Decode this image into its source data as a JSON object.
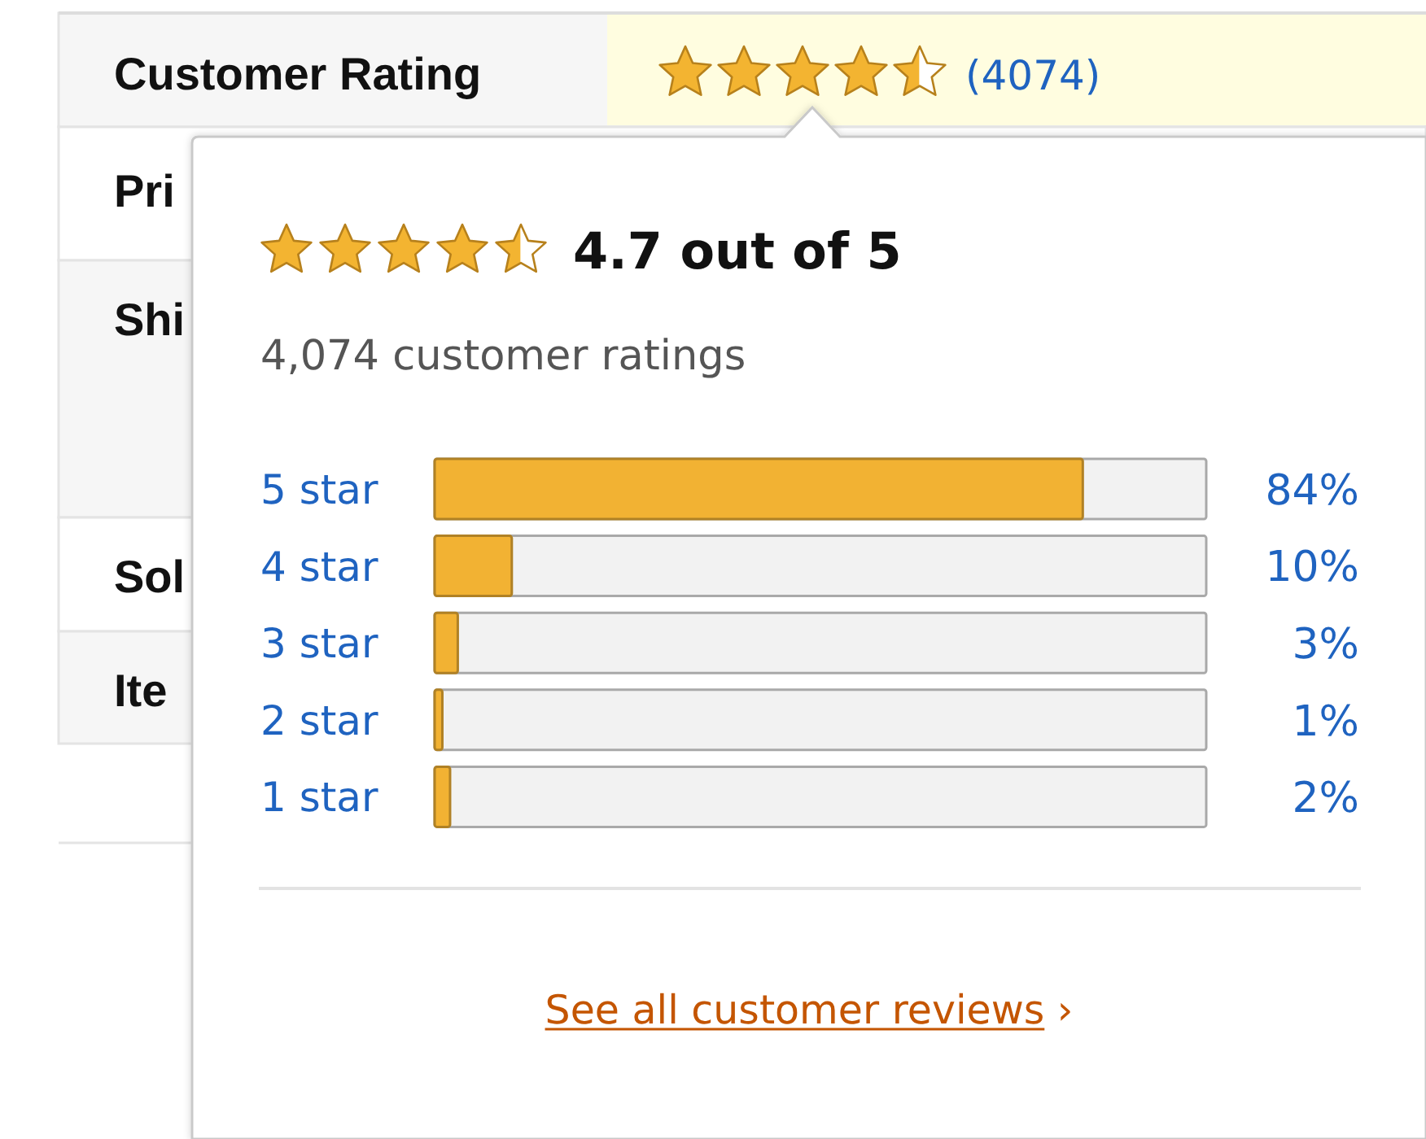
{
  "chart_data": {
    "type": "bar",
    "orientation": "horizontal",
    "title": "4.7 out of 5",
    "subtitle": "4,074 customer ratings",
    "categories": [
      "5 star",
      "4 star",
      "3 star",
      "2 star",
      "1 star"
    ],
    "values": [
      84,
      10,
      3,
      1,
      2
    ],
    "value_labels": [
      "84%",
      "10%",
      "3%",
      "1%",
      "2%"
    ],
    "color": "#f2b233",
    "xlim": [
      0,
      100
    ],
    "annotations": [
      "Customer Rating",
      "(4074)",
      "Pri",
      "Shi",
      "Sol",
      "Ite",
      "See all customer reviews ›"
    ]
  }
}
